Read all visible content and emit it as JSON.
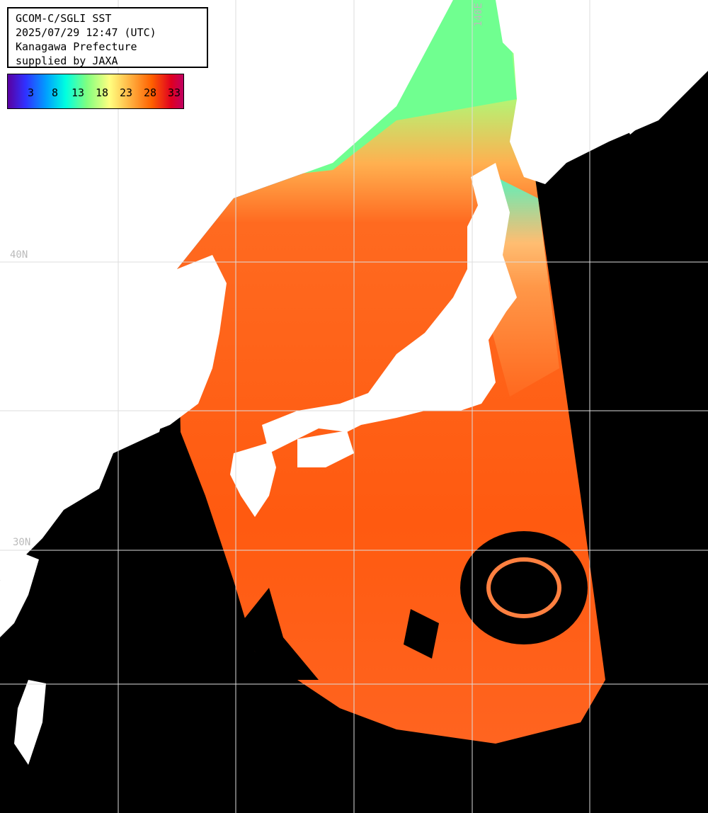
{
  "info": {
    "line1": "GCOM-C/SGLI SST",
    "line2": "2025/07/29 12:47 (UTC)",
    "line3": "Kanagawa Prefecture",
    "line4": "supplied by JAXA"
  },
  "scale": {
    "ticks": [
      "3",
      "8",
      "13",
      "18",
      "23",
      "28",
      "33"
    ]
  },
  "grid_labels": {
    "lat_40": "40N",
    "lat_30": "30N",
    "lon_140": "140E"
  },
  "colors": {
    "land": "#ffffff",
    "no_data": "#000000",
    "sst_warm": "#ff5a10",
    "sst_mid": "#ffb050",
    "sst_cool": "#80ff90",
    "grid": "#ffffff"
  }
}
